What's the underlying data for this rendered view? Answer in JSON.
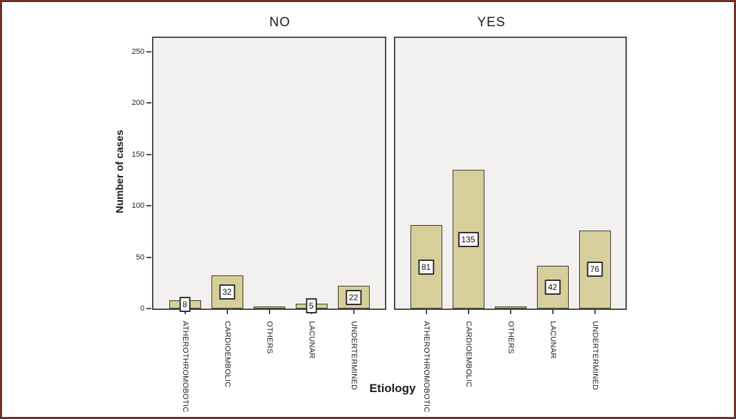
{
  "figure": {
    "border_color": "#702f28",
    "background": "#ffffff"
  },
  "chart_data": {
    "type": "bar",
    "layout": "two panels side by side sharing one y-axis",
    "panel_titles": [
      "NO",
      "YES"
    ],
    "categories": [
      "ATHEROTHROMOBOTIC",
      "CARDIOEMBOLIC",
      "OTHERS",
      "LACUNAR",
      "UNDERTERMINED"
    ],
    "series": [
      {
        "name": "NO",
        "values": [
          8,
          32,
          2,
          5,
          22
        ],
        "bar_labels": [
          "8",
          "32",
          "",
          "5",
          "22"
        ]
      },
      {
        "name": "YES",
        "values": [
          81,
          135,
          2,
          42,
          76
        ],
        "bar_labels": [
          "81",
          "135",
          "",
          "42",
          "76"
        ]
      }
    ],
    "xlabel": "Etiology",
    "ylabel": "Number of cases",
    "yticks": [
      0,
      50,
      100,
      150,
      200,
      250
    ],
    "ylim": [
      0,
      265
    ],
    "grid": false,
    "legend": "none",
    "bar_color": "#d7cf9b",
    "bar_border_color": "#3a3a28",
    "panel_bg": "#f2f1ef",
    "panel_border_color": "#4b4b4b",
    "value_label_box": {
      "background": "#fdfdfd",
      "border": "#2f2f2f"
    }
  }
}
